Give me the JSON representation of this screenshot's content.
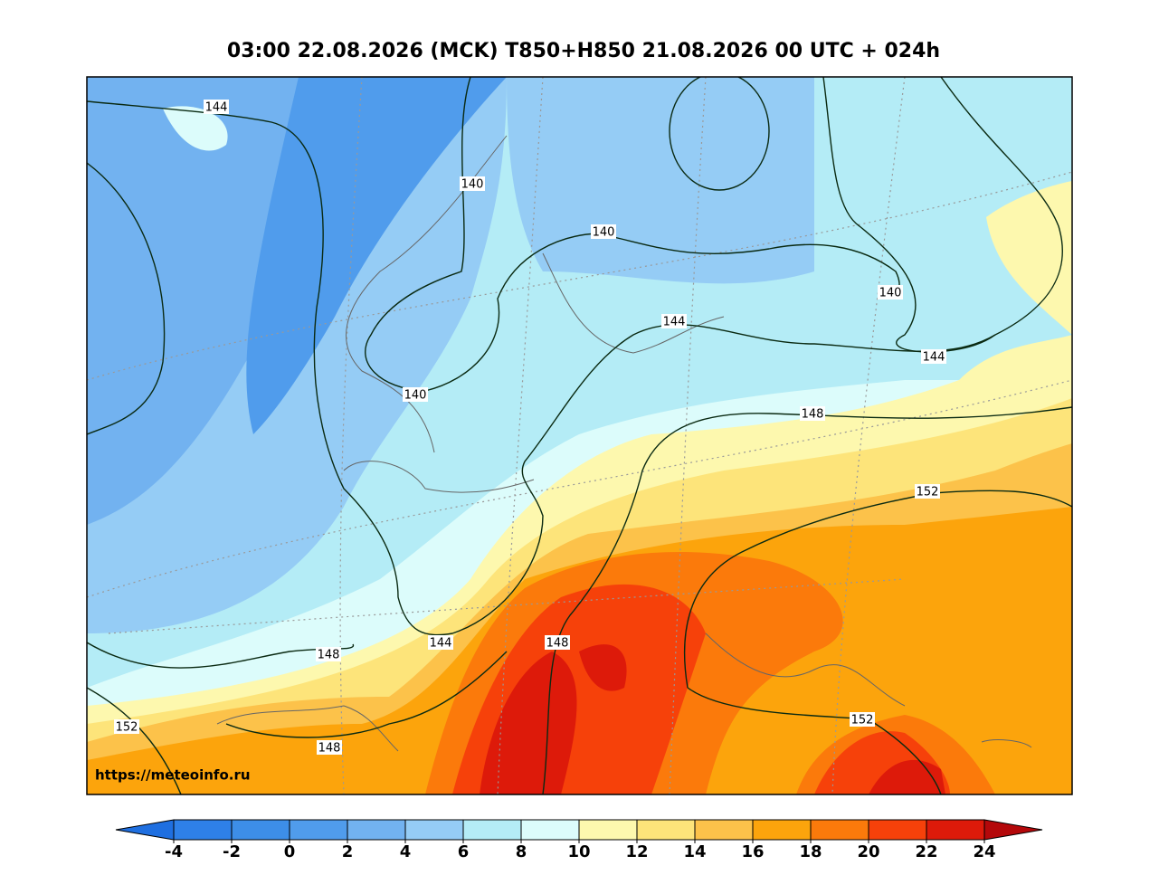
{
  "title": "03:00 22.08.2026 (MCK) T850+H850 21.08.2026 00 UTC + 024h",
  "url": "https://meteoinfo.ru",
  "contour_labels": [
    "144",
    "140",
    "140",
    "140",
    "144",
    "144",
    "140",
    "148",
    "152",
    "148",
    "144",
    "148",
    "152",
    "152",
    "148"
  ],
  "colorbar": {
    "ticks": [
      -4,
      -2,
      0,
      2,
      4,
      6,
      8,
      10,
      12,
      14,
      16,
      18,
      20,
      22,
      24
    ],
    "colors": [
      "#1f6fe0",
      "#2e80e8",
      "#3d8ee8",
      "#509cec",
      "#72b2f0",
      "#95ccf5",
      "#b4ecf6",
      "#dcfcfb",
      "#fdf8ae",
      "#fde47a",
      "#fcc24a",
      "#fca40c",
      "#fb7a0b",
      "#f6410a",
      "#dd1a0a",
      "#b4080a"
    ]
  }
}
